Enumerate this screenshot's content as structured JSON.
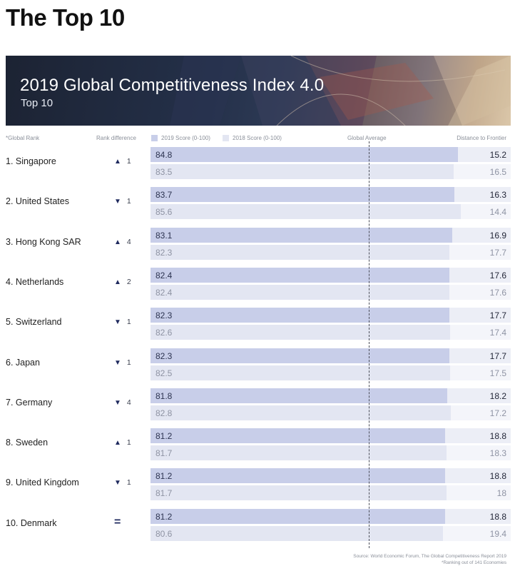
{
  "page": {
    "title": "The Top 10"
  },
  "banner": {
    "title": "2019 Global Competitiveness Index 4.0",
    "subtitle": "Top 10"
  },
  "headers": {
    "global_rank": "*Global Rank",
    "rank_difference": "Rank difference",
    "score_2019": "2019 Score (0-100)",
    "score_2018": "2018 Score (0-100)",
    "global_average": "Global Average",
    "distance_to_frontier": "Distance to Frontier"
  },
  "colors": {
    "bar_2019": "#c8cee9",
    "bar_2018": "#e3e6f2",
    "legend_2019": "#c8cee9",
    "legend_2018": "#e3e6f2",
    "arrow": "#1f2a5e"
  },
  "chart_data": {
    "type": "bar",
    "title": "2019 Global Competitiveness Index 4.0",
    "subtitle": "Top 10",
    "categories": [
      "1. Singapore",
      "2. United States",
      "3. Hong Kong SAR",
      "4. Netherlands",
      "5. Switzerland",
      "6. Japan",
      "7. Germany",
      "8. Sweden",
      "9. United Kingdom",
      "10. Denmark"
    ],
    "rank_difference": [
      {
        "dir": "up",
        "symbol": "▲",
        "value": "1"
      },
      {
        "dir": "down",
        "symbol": "▼",
        "value": "1"
      },
      {
        "dir": "up",
        "symbol": "▲",
        "value": "4"
      },
      {
        "dir": "up",
        "symbol": "▲",
        "value": "2"
      },
      {
        "dir": "down",
        "symbol": "▼",
        "value": "1"
      },
      {
        "dir": "down",
        "symbol": "▼",
        "value": "1"
      },
      {
        "dir": "down",
        "symbol": "▼",
        "value": "4"
      },
      {
        "dir": "up",
        "symbol": "▲",
        "value": "1"
      },
      {
        "dir": "down",
        "symbol": "▼",
        "value": "1"
      },
      {
        "dir": "equal",
        "symbol": "=",
        "value": ""
      }
    ],
    "series": [
      {
        "name": "2019 Score (0-100)",
        "values": [
          "84.8",
          "83.7",
          "83.1",
          "82.4",
          "82.3",
          "82.3",
          "81.8",
          "81.2",
          "81.2",
          "81.2"
        ],
        "distance_to_frontier": [
          "15.2",
          "16.3",
          "16.9",
          "17.6",
          "17.7",
          "17.7",
          "18.2",
          "18.8",
          "18.8",
          "18.8"
        ]
      },
      {
        "name": "2018 Score (0-100)",
        "values": [
          "83.5",
          "85.6",
          "82.3",
          "82.4",
          "82.6",
          "82.5",
          "82.8",
          "81.7",
          "81.7",
          "80.6"
        ],
        "distance_to_frontier": [
          "16.5",
          "14.4",
          "17.7",
          "17.6",
          "17.4",
          "17.5",
          "17.2",
          "18.3",
          "18",
          "19.4"
        ]
      }
    ],
    "xlim": [
      0,
      100
    ],
    "reference_line": "Global Average",
    "legend_position": "top"
  },
  "footer": {
    "source": "Source:  World Economic Forum, The Global Competitiveness Report 2019",
    "note": "*Ranking out of 141 Economies"
  }
}
